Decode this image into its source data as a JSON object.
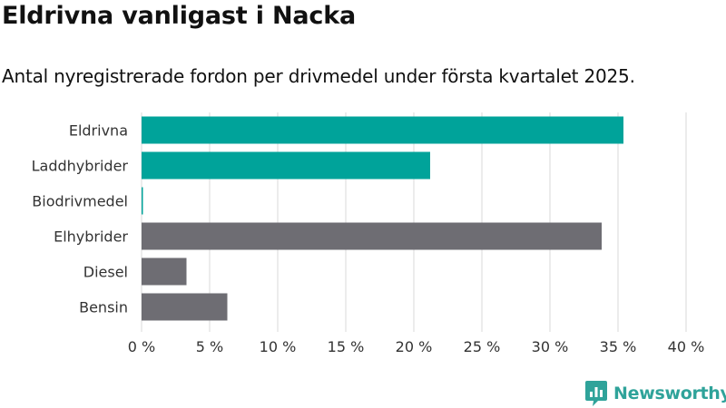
{
  "title": "Eldrivna vanligast i Nacka",
  "subtitle": "Antal nyregistrerade fordon per drivmedel under första kvartalet 2025.",
  "brand": {
    "name": "Newsworthy",
    "icon": "newsworthy-logo-icon"
  },
  "colors": {
    "electric": "#00a39a",
    "other": "#6e6d73",
    "grid": "#d9d9d9",
    "text": "#333333",
    "brand": "#2fa39a"
  },
  "chart_data": {
    "type": "bar",
    "orientation": "horizontal",
    "categories": [
      "Eldrivna",
      "Laddhybrider",
      "Biodrivmedel",
      "Elhybrider",
      "Diesel",
      "Bensin"
    ],
    "values": [
      35.4,
      21.2,
      0.1,
      33.8,
      3.3,
      6.3
    ],
    "highlight": [
      true,
      true,
      true,
      false,
      false,
      false
    ],
    "xlim": [
      0,
      40
    ],
    "xticks": [
      0,
      5,
      10,
      15,
      20,
      25,
      30,
      35,
      40
    ],
    "xtick_labels": [
      "0 %",
      "5 %",
      "10 %",
      "15 %",
      "20 %",
      "25 %",
      "30 %",
      "35 %",
      "40 %"
    ],
    "grid": true,
    "xlabel": "",
    "ylabel": ""
  }
}
